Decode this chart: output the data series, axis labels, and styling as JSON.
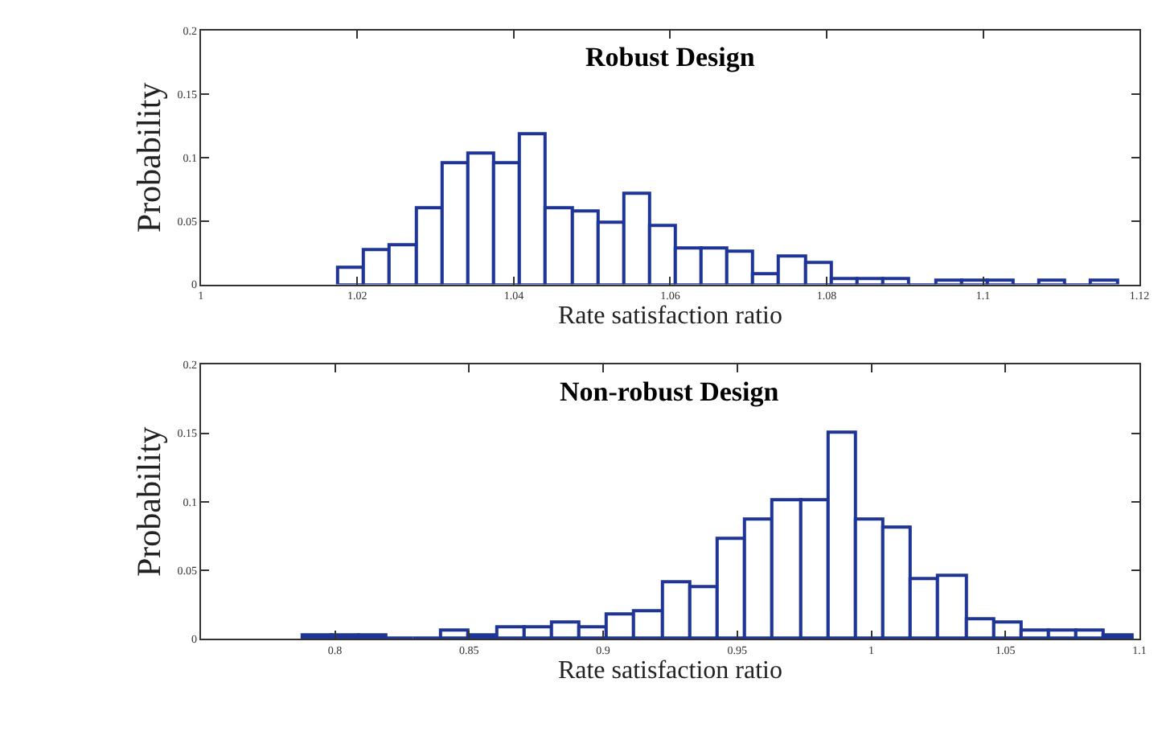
{
  "chart_data": [
    {
      "type": "histogram",
      "title": "Robust Design",
      "xlabel": "Rate satisfaction ratio",
      "ylabel": "Probability",
      "color": "#1f3595",
      "bins": [
        1.0175,
        1.0208,
        1.0241,
        1.0275,
        1.0308,
        1.0341,
        1.0374,
        1.0407,
        1.0441,
        1.0474,
        1.0507,
        1.054,
        1.0573,
        1.0607,
        1.064,
        1.0673,
        1.0706,
        1.0739,
        1.0773,
        1.0806,
        1.0839,
        1.0872,
        1.0905,
        1.0939,
        1.0972,
        1.1005,
        1.1038,
        1.1071,
        1.1105,
        1.1138,
        1.1171
      ],
      "values": [
        0.014,
        0.028,
        0.032,
        0.061,
        0.096,
        0.104,
        0.096,
        0.119,
        0.061,
        0.058,
        0.049,
        0.072,
        0.046,
        0.029,
        0.029,
        0.026,
        0.009,
        0.023,
        0.017,
        0.005,
        0.005,
        0.005,
        0,
        0.003,
        0.003,
        0.003,
        0,
        0.003,
        0,
        0.003
      ],
      "xlim": [
        1,
        1.12
      ],
      "xticks": [
        1,
        1.02,
        1.04,
        1.06,
        1.08,
        1.1,
        1.12
      ],
      "ylim": [
        0,
        0.2
      ],
      "yticks": [
        0,
        0.05,
        0.1,
        0.15,
        0.2
      ]
    },
    {
      "type": "histogram",
      "title": "Non-robust Design",
      "xlabel": "Rate satisfaction ratio",
      "ylabel": "Probability",
      "color": "#1f3595",
      "bins": [
        0.788,
        0.7983,
        0.8086,
        0.8189,
        0.8292,
        0.8395,
        0.8498,
        0.8601,
        0.8704,
        0.8807,
        0.891,
        0.9013,
        0.9116,
        0.9219,
        0.9322,
        0.9425,
        0.9528,
        0.9631,
        0.9734,
        0.9837,
        0.994,
        1.0043,
        1.0146,
        1.0249,
        1.0352,
        1.0455,
        1.0558,
        1.0661,
        1.0764,
        1.0867,
        1.097
      ],
      "values": [
        0.003,
        0.003,
        0.003,
        0,
        0,
        0.006,
        0.003,
        0.009,
        0.009,
        0.012,
        0.009,
        0.018,
        0.02,
        0.041,
        0.038,
        0.073,
        0.087,
        0.101,
        0.101,
        0.151,
        0.087,
        0.081,
        0.044,
        0.046,
        0.015,
        0.012,
        0.006,
        0.006,
        0.006,
        0.003
      ],
      "xlim": [
        0.75,
        1.1
      ],
      "xticks": [
        0.8,
        0.85,
        0.9,
        0.95,
        1,
        1.05,
        1.1
      ],
      "ylim": [
        0,
        0.2
      ],
      "yticks": [
        0,
        0.05,
        0.1,
        0.15,
        0.2
      ]
    }
  ]
}
